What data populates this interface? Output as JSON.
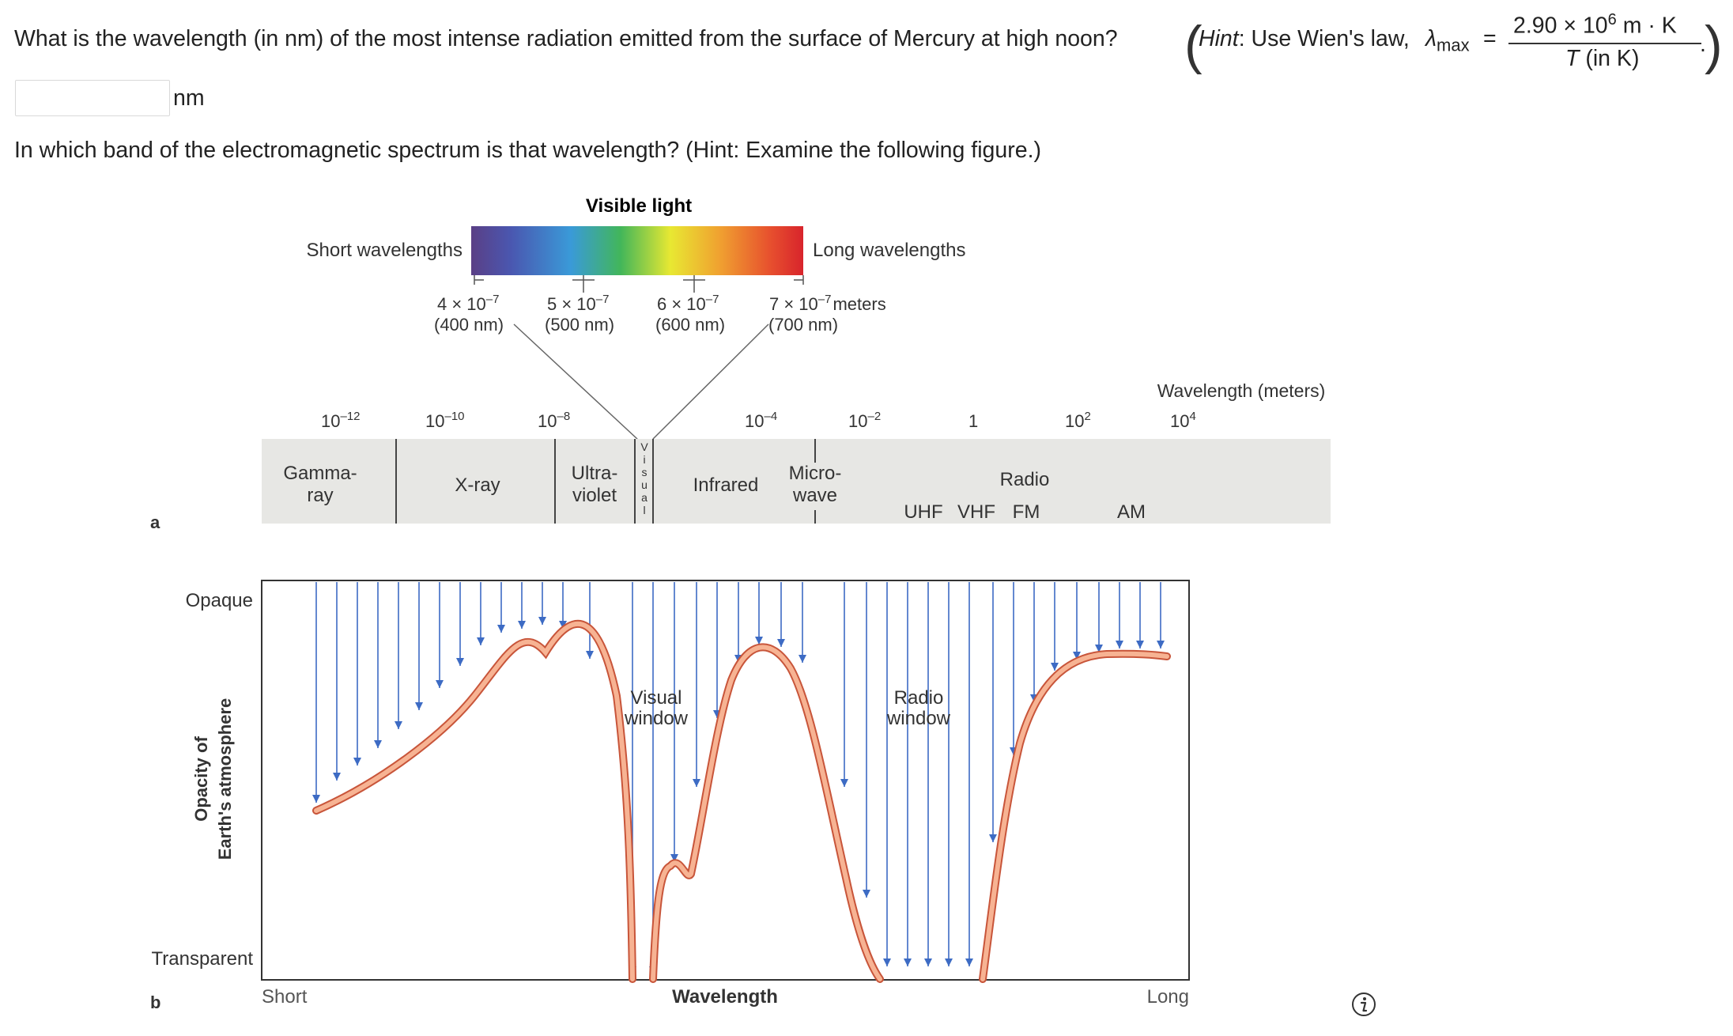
{
  "question1": {
    "text": "What is the wavelength (in nm) of the most intense radiation emitted from the surface of Mercury at high noon?",
    "hint_prefix": "Hint",
    "hint_text": ": Use Wien's law, ",
    "lambda": "λ",
    "lambda_sub": "max",
    "equals": "=",
    "formula_numerator": "2.90 × 10",
    "formula_exponent": "6",
    "formula_units": " m · K",
    "formula_denominator_T": "T",
    "formula_denominator_rest": " (in K)",
    "period": "."
  },
  "answer": {
    "value": "",
    "unit": "nm"
  },
  "question2": {
    "text": "In which band of the electromagnetic spectrum is that wavelength? (Hint: Examine the following figure.)"
  },
  "figure": {
    "visible_light_title": "Visible light",
    "short_wavelengths": "Short wavelengths",
    "long_wavelengths": "Long wavelengths",
    "visible_ticks": [
      {
        "sci": "4 × 10",
        "exp": "–7",
        "nm": "(400 nm)"
      },
      {
        "sci": "5 × 10",
        "exp": "–7",
        "nm": "(500 nm)"
      },
      {
        "sci": "6 × 10",
        "exp": "–7",
        "nm": "(600 nm)"
      },
      {
        "sci": "7 × 10",
        "exp": "–7",
        "suffix": "meters",
        "nm": "(700 nm)"
      }
    ],
    "wavelength_meters_label": "Wavelength (meters)",
    "scale_ticks": [
      {
        "base": "10",
        "exp": "–12"
      },
      {
        "base": "10",
        "exp": "–10"
      },
      {
        "base": "10",
        "exp": "–8"
      },
      {
        "base": "10",
        "exp": "–4"
      },
      {
        "base": "10",
        "exp": "–2"
      },
      {
        "base": "1",
        "exp": ""
      },
      {
        "base": "10",
        "exp": "2"
      },
      {
        "base": "10",
        "exp": "4"
      }
    ],
    "bands": {
      "gamma_1": "Gamma-",
      "gamma_2": "ray",
      "xray": "X-ray",
      "uv_1": "Ultra-",
      "uv_2": "violet",
      "visual_letters": [
        "V",
        "i",
        "s",
        "u",
        "a",
        "l"
      ],
      "infrared": "Infrared",
      "micro_1": "Micro-",
      "micro_2": "wave",
      "radio": "Radio",
      "uhf": "UHF",
      "vhf": "VHF",
      "fm": "FM",
      "am": "AM"
    },
    "panel_a": "a",
    "panel_b": "b",
    "opaque": "Opaque",
    "transparent": "Transparent",
    "y_axis_1": "Opacity of",
    "y_axis_2": "Earth's atmosphere",
    "visual_window_1": "Visual",
    "visual_window_2": "window",
    "radio_window_1": "Radio",
    "radio_window_2": "window",
    "x_short": "Short",
    "x_wavelength": "Wavelength",
    "x_long": "Long"
  },
  "colors": {
    "curve": "#f3a07a",
    "curve_edge": "#c8553a",
    "arrow": "#3d6bc4",
    "band": "#e7e7e4"
  },
  "icons": {
    "info": "info-icon"
  }
}
